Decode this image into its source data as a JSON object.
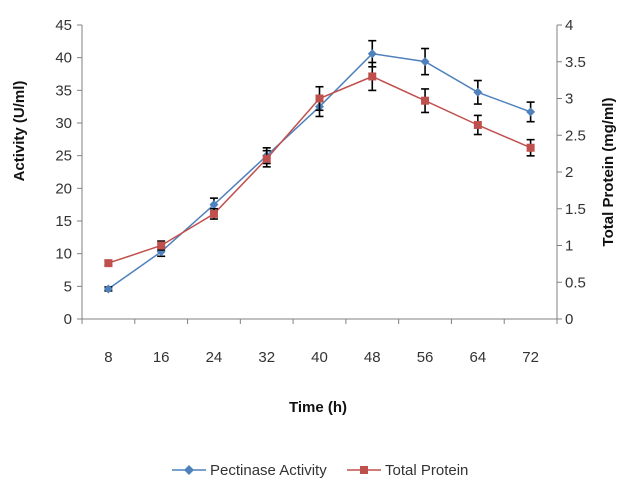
{
  "chart_data": {
    "type": "line",
    "x": [
      8,
      16,
      24,
      32,
      40,
      48,
      56,
      64,
      72
    ],
    "xlabel": "Time (h)",
    "ylabel_left": "Activity (U/ml)",
    "ylabel_right": "Total Protein (mg/ml)",
    "ylim_left": [
      0,
      45
    ],
    "ylim_right": [
      0,
      4
    ],
    "yticks_left": [
      0,
      5,
      10,
      15,
      20,
      25,
      30,
      35,
      40,
      45
    ],
    "yticks_right": [
      0,
      0.5,
      1,
      1.5,
      2,
      2.5,
      3,
      3.5,
      4
    ],
    "grid": false,
    "legend_position": "bottom",
    "series": [
      {
        "name": "Pectinase Activity",
        "axis": "left",
        "color": "#4F81BD",
        "marker": "diamond",
        "values": [
          4.6,
          10.3,
          17.5,
          25.0,
          32.5,
          40.6,
          39.4,
          34.7,
          31.7
        ],
        "errors": [
          0.3,
          0.7,
          1.0,
          1.2,
          1.5,
          2.0,
          2.0,
          1.8,
          1.5
        ]
      },
      {
        "name": "Total Protein",
        "axis": "right",
        "color": "#C0504D",
        "marker": "square",
        "values": [
          0.76,
          1.0,
          1.43,
          2.18,
          3.0,
          3.3,
          2.97,
          2.64,
          2.33
        ],
        "errors": [
          0.03,
          0.06,
          0.07,
          0.11,
          0.16,
          0.19,
          0.16,
          0.13,
          0.11
        ]
      }
    ]
  }
}
